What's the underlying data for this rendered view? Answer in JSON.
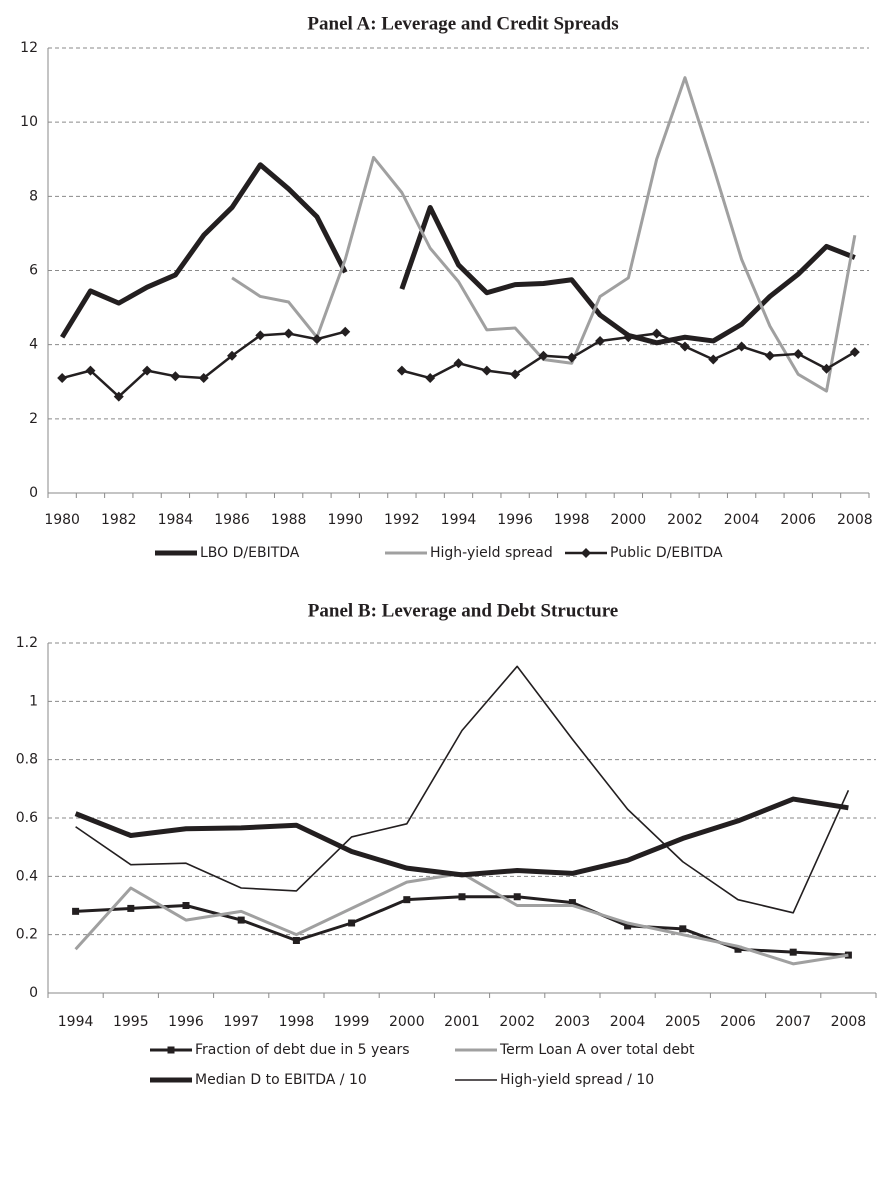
{
  "chart_data": [
    {
      "type": "line",
      "title": "Panel A: Leverage and Credit Spreads",
      "categories": [
        "1980",
        null,
        "1982",
        null,
        "1984",
        null,
        "1986",
        null,
        "1988",
        null,
        "1990",
        null,
        "1992",
        null,
        "1994",
        null,
        "1996",
        null,
        "1998",
        null,
        "2000",
        null,
        "2002",
        null,
        "2004",
        null,
        "2006",
        null,
        "2008"
      ],
      "ylim": [
        0,
        12
      ],
      "yticks": [
        0,
        2,
        4,
        6,
        8,
        10,
        12
      ],
      "grid": true,
      "legend": "bottom",
      "series": [
        {
          "name": "LBO D/EBITDA",
          "color": "#231f20",
          "line_width": 5,
          "marker": "none",
          "values": [
            4.2,
            5.45,
            5.12,
            5.55,
            5.88,
            6.95,
            7.7,
            8.85,
            8.2,
            7.45,
            5.95,
            null,
            5.5,
            7.7,
            6.15,
            5.4,
            5.62,
            5.65,
            5.75,
            4.8,
            4.25,
            4.05,
            4.2,
            4.1,
            4.55,
            5.3,
            5.9,
            6.65,
            6.35
          ]
        },
        {
          "name": "High-yield spread",
          "color": "#a0a0a0",
          "line_width": 3,
          "marker": "none",
          "values": [
            null,
            null,
            null,
            null,
            null,
            null,
            5.8,
            5.3,
            5.15,
            4.2,
            6.3,
            9.05,
            8.1,
            6.6,
            5.7,
            4.4,
            4.45,
            3.6,
            3.5,
            5.3,
            5.8,
            9.0,
            11.2,
            8.8,
            6.3,
            4.5,
            3.2,
            2.75,
            6.95
          ]
        },
        {
          "name": "Public D/EBITDA",
          "color": "#231f20",
          "line_width": 2.5,
          "marker": "diamond",
          "values": [
            3.1,
            3.3,
            2.6,
            3.3,
            3.15,
            3.1,
            3.7,
            4.25,
            4.3,
            4.15,
            4.35,
            null,
            3.3,
            3.1,
            3.5,
            3.3,
            3.2,
            3.7,
            3.65,
            4.1,
            4.2,
            4.3,
            3.95,
            3.6,
            3.95,
            3.7,
            3.75,
            3.35,
            3.8
          ]
        }
      ]
    },
    {
      "type": "line",
      "title": "Panel B: Leverage and Debt Structure",
      "categories": [
        "1994",
        "1995",
        "1996",
        "1997",
        "1998",
        "1999",
        "2000",
        "2001",
        "2002",
        "2003",
        "2004",
        "2005",
        "2006",
        "2007",
        "2008"
      ],
      "ylim": [
        0,
        1.2
      ],
      "yticks": [
        0,
        0.2,
        0.4,
        0.6,
        0.8,
        1,
        1.2
      ],
      "grid": true,
      "legend": "bottom",
      "series": [
        {
          "name": "Fraction of debt due in 5 years",
          "color": "#231f20",
          "line_width": 3,
          "marker": "square",
          "values": [
            0.28,
            0.29,
            0.3,
            0.25,
            0.18,
            0.24,
            0.32,
            0.33,
            0.33,
            0.31,
            0.23,
            0.22,
            0.15,
            0.14,
            0.13
          ]
        },
        {
          "name": "Term Loan A over total debt",
          "color": "#a0a0a0",
          "line_width": 3,
          "marker": "none",
          "values": [
            0.15,
            0.36,
            0.25,
            0.28,
            0.2,
            0.29,
            0.38,
            0.41,
            0.3,
            0.3,
            0.24,
            0.2,
            0.16,
            0.1,
            0.13
          ]
        },
        {
          "name": "Median D to EBITDA / 10",
          "color": "#231f20",
          "line_width": 5,
          "marker": "none",
          "values": [
            0.615,
            0.54,
            0.563,
            0.566,
            0.575,
            0.485,
            0.428,
            0.405,
            0.42,
            0.41,
            0.455,
            0.53,
            0.59,
            0.665,
            0.635
          ]
        },
        {
          "name": "High-yield spread / 10",
          "color": "#231f20",
          "line_width": 1.6,
          "marker": "none",
          "values": [
            0.57,
            0.44,
            0.445,
            0.36,
            0.35,
            0.535,
            0.58,
            0.9,
            1.12,
            0.87,
            0.63,
            0.45,
            0.32,
            0.275,
            0.695
          ]
        }
      ]
    }
  ]
}
